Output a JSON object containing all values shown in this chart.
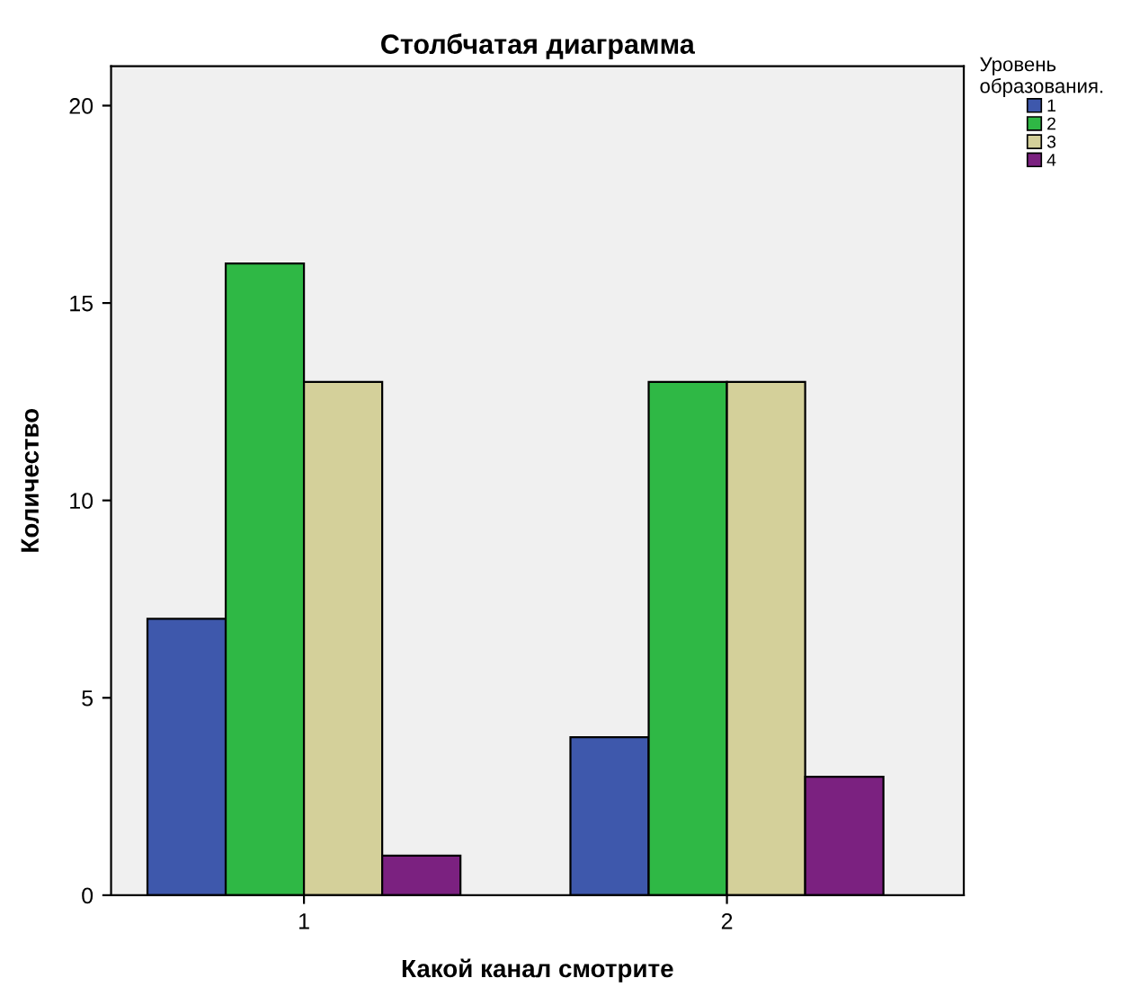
{
  "chart_data": {
    "type": "bar",
    "title": "Столбчатая диаграмма",
    "xlabel": "Какой канал смотрите",
    "ylabel": "Количество",
    "legend_title": "Уровень\nобразования.",
    "categories": [
      "1",
      "2"
    ],
    "series": [
      {
        "name": "1",
        "color": "#3e58ac",
        "values": [
          7,
          4
        ]
      },
      {
        "name": "2",
        "color": "#2fb845",
        "values": [
          16,
          13
        ]
      },
      {
        "name": "3",
        "color": "#d4d09a",
        "values": [
          13,
          13
        ]
      },
      {
        "name": "4",
        "color": "#7b2180",
        "values": [
          1,
          3
        ]
      }
    ],
    "ylim": [
      0,
      21
    ],
    "yticks": [
      0,
      5,
      10,
      15,
      20
    ],
    "grid": false,
    "legend": "top right"
  }
}
